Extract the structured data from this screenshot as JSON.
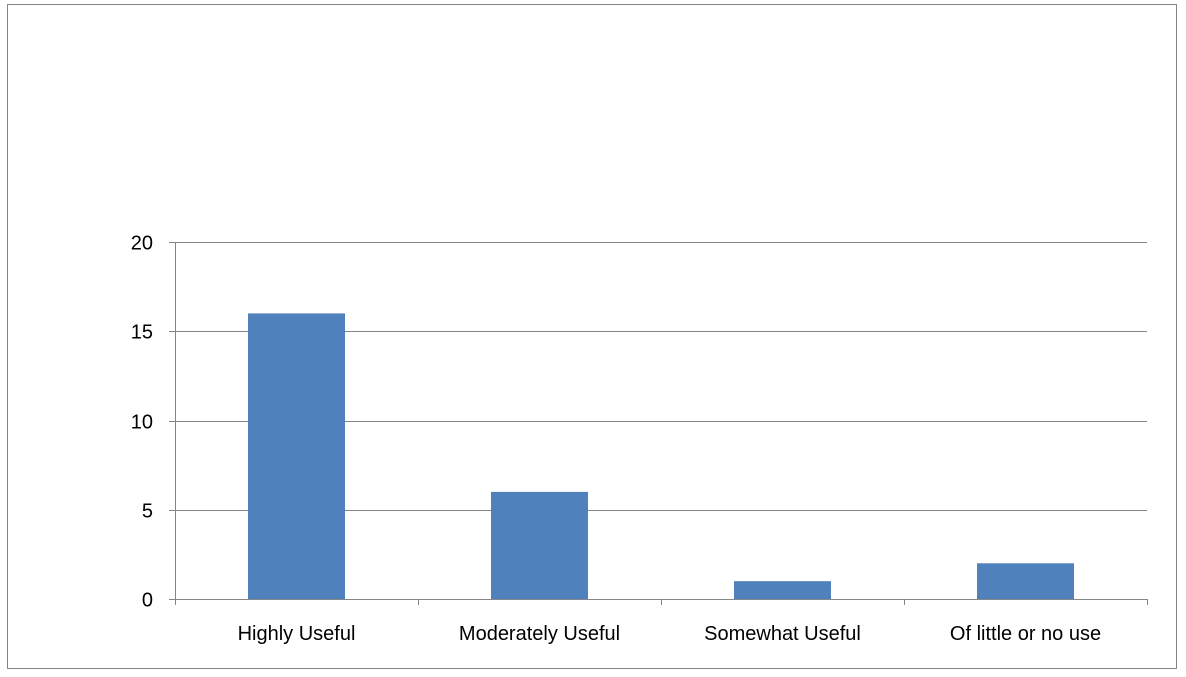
{
  "chart_data": {
    "type": "bar",
    "categories": [
      "Highly Useful",
      "Moderately Useful",
      "Somewhat Useful",
      "Of little or no use"
    ],
    "values": [
      16,
      6,
      1,
      2
    ],
    "title": "",
    "xlabel": "",
    "ylabel": "",
    "ylim": [
      0,
      20
    ],
    "yticks": [
      0,
      5,
      10,
      15,
      20
    ],
    "ytick_labels": [
      "0",
      "5",
      "10",
      "15",
      "20"
    ],
    "grid": true,
    "legend": "none",
    "colors": {
      "bar": "#4f81bd",
      "grid": "#868686",
      "axis": "#868686",
      "text": "#000000"
    }
  }
}
